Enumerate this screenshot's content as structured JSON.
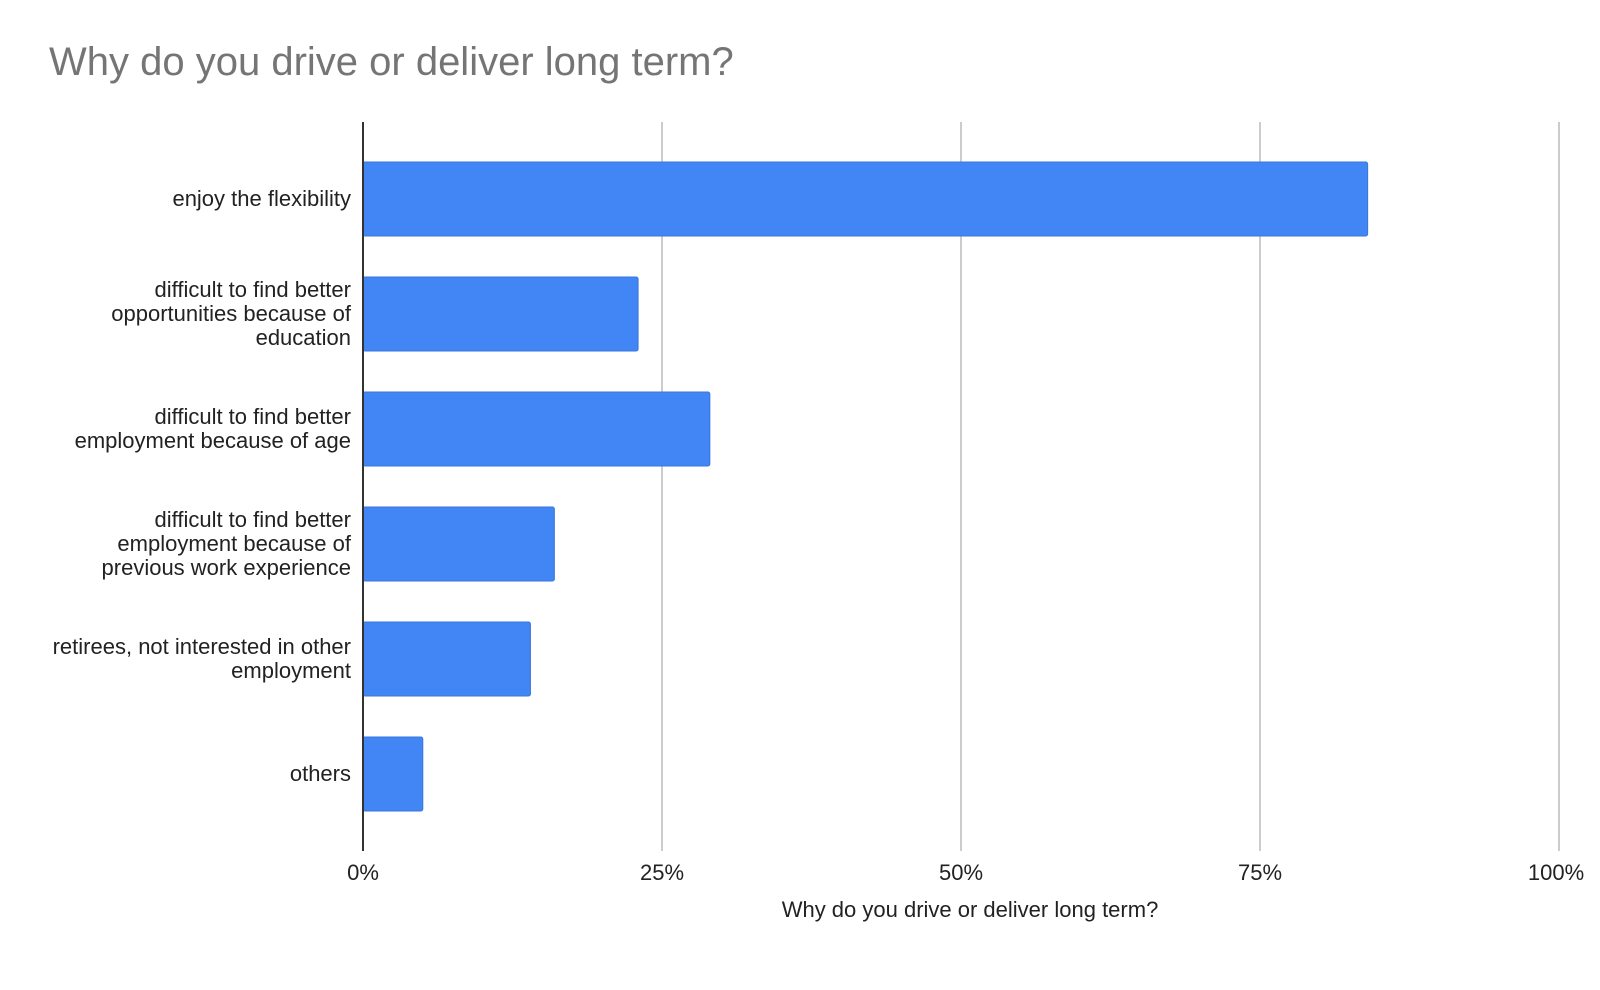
{
  "chart_data": {
    "type": "bar",
    "orientation": "horizontal",
    "title": "Why do you drive or deliver long term?",
    "xlabel": "Why do you drive or deliver long term?",
    "ylabel": "",
    "categories": [
      "enjoy the flexibility",
      "difficult to find better opportunities because of education",
      "difficult to find better employment because of age",
      "difficult to find better employment because of previous work experience",
      "retirees, not interested in other employment",
      "others"
    ],
    "values": [
      0.84,
      0.23,
      0.29,
      0.16,
      0.14,
      0.05
    ],
    "xlim": [
      0,
      1
    ],
    "xticks": [
      "0%",
      "25%",
      "50%",
      "75%",
      "100%"
    ],
    "grid": true,
    "legend": "none",
    "bar_color": "#4285f4",
    "grid_color": "#cccccc",
    "axis_color": "#333333"
  }
}
